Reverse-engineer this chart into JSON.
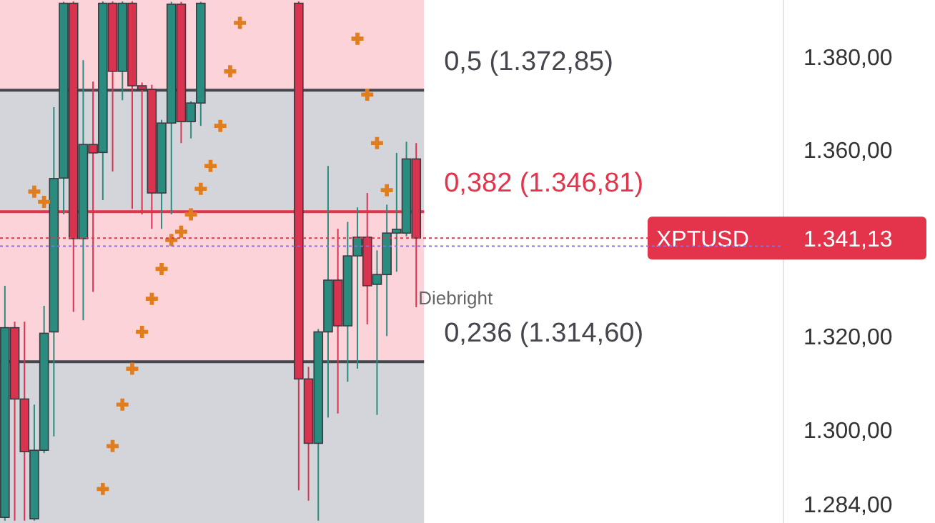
{
  "chart_data": {
    "type": "candlestick",
    "categories": [
      null,
      null,
      null,
      null,
      null,
      null,
      null,
      null,
      null,
      null,
      null,
      null,
      null,
      null,
      null,
      null,
      null,
      null,
      null,
      null,
      null,
      null,
      null,
      null,
      null,
      null,
      null,
      null,
      null,
      null,
      null,
      null,
      null,
      null,
      null,
      null,
      null,
      null,
      null,
      null,
      null,
      null,
      null,
      null,
      null,
      null,
      null,
      null,
      null,
      null,
      null,
      null,
      null,
      null,
      null,
      null,
      null,
      null,
      null,
      null,
      null,
      null,
      null,
      null,
      null,
      null,
      null,
      null,
      null,
      null,
      null,
      null,
      null,
      null,
      null,
      null,
      null,
      null,
      null,
      null
    ],
    "ohlc": [
      [
        1281.2,
        1330.9,
        1280.5,
        1321.9
      ],
      [
        1321.9,
        1323.2,
        1280.5,
        1306.6
      ],
      [
        1306.6,
        1323.2,
        1280.5,
        1295.3
      ],
      [
        1280.9,
        1305.4,
        1280.5,
        1295.6
      ],
      [
        1295.6,
        1326.6,
        1295.0,
        1320.7
      ],
      [
        1321.0,
        1369.2,
        1298.6,
        1353.9
      ],
      [
        1354.0,
        1391.8,
        1346.2,
        1391.5
      ],
      [
        1391.5,
        1391.9,
        1325.3,
        1341.0
      ],
      [
        1341.0,
        1379.3,
        1323.5,
        1361.2
      ],
      [
        1361.2,
        1374.7,
        1329.6,
        1359.4
      ],
      [
        1359.5,
        1391.9,
        1349.3,
        1391.5
      ],
      [
        1391.5,
        1391.9,
        1355.4,
        1376.9
      ],
      [
        1376.9,
        1391.9,
        1370.7,
        1391.5
      ],
      [
        1391.5,
        1391.9,
        1347.4,
        1373.8
      ],
      [
        1373.8,
        1374.5,
        1346.2,
        1373.0
      ],
      [
        1373.0,
        1374.0,
        1343.1,
        1350.8
      ],
      [
        1350.8,
        1366.5,
        1343.1,
        1365.8
      ],
      [
        1365.8,
        1391.8,
        1346.2,
        1391.3
      ],
      [
        1391.3,
        1391.8,
        1361.5,
        1366.1
      ],
      [
        1366.1,
        1370.5,
        1362.5,
        1370.1
      ],
      [
        1370.1,
        1391.8,
        1365.2,
        1391.5
      ],
      null,
      null,
      null,
      null,
      null,
      null,
      null,
      null,
      null,
      [
        1391.5,
        1391.9,
        1287.0,
        1310.9
      ],
      [
        1310.9,
        1313.5,
        1284.8,
        1297.1
      ],
      [
        1297.1,
        1321.6,
        1280.5,
        1321.0
      ],
      [
        1321.0,
        1356.6,
        1302.6,
        1332.1
      ],
      [
        1332.1,
        1343.1,
        1303.5,
        1322.3
      ],
      [
        1322.3,
        1344.6,
        1310.3,
        1337.3
      ],
      [
        1337.3,
        1347.7,
        1313.1,
        1341.3
      ],
      [
        1341.3,
        1350.8,
        1322.6,
        1330.9
      ],
      [
        1331.2,
        1338.5,
        1303.2,
        1333.3
      ],
      [
        1333.3,
        1348.3,
        1320.1,
        1342.2
      ],
      [
        1342.2,
        1359.4,
        1333.9,
        1343.0
      ],
      [
        1342.2,
        1361.8,
        1341.5,
        1358.1
      ],
      [
        1358.1,
        1361.5,
        1326.3,
        1341.13
      ],
      null,
      null,
      null,
      null,
      null,
      null,
      null,
      null,
      null,
      null,
      null,
      null,
      null,
      null,
      null,
      null,
      null,
      null,
      null,
      null,
      null,
      null,
      null,
      null,
      null,
      null,
      null,
      null,
      null,
      null,
      null,
      null,
      null,
      null,
      null,
      null,
      null
    ],
    "colors": [
      "#2a8c7e",
      "#d9334f",
      "#d9334f",
      "#2a8c7e",
      "#2a8c7e",
      "#2a8c7e",
      "#2a8c7e",
      "#d9334f",
      "#2a8c7e",
      "#d9334f",
      "#2a8c7e",
      "#d9334f",
      "#2a8c7e",
      "#d9334f",
      "#d9334f",
      "#d9334f",
      "#2a8c7e",
      "#2a8c7e",
      "#d9334f",
      "#2a8c7e",
      "#2a8c7e",
      null,
      null,
      null,
      null,
      null,
      null,
      null,
      null,
      null,
      "#d9334f",
      "#d9334f",
      "#2a8c7e",
      "#2a8c7e",
      "#d9334f",
      "#2a8c7e",
      "#2a8c7e",
      "#d9334f",
      "#2a8c7e",
      "#2a8c7e",
      "#2a8c7e",
      "#2a8c7e",
      "#d9334f",
      null,
      null,
      null,
      null,
      null,
      null,
      null,
      null,
      null,
      null,
      null,
      null,
      null,
      null,
      null,
      null,
      null,
      null,
      null,
      null,
      null,
      null,
      null,
      null,
      null,
      null,
      null,
      null,
      null,
      null,
      null,
      null,
      null,
      null,
      null,
      null,
      null
    ],
    "series": [
      {
        "type": "scatter",
        "color": "#e07d1f",
        "values": [
          null,
          null,
          null,
          1351.1,
          1348.9,
          null,
          null,
          null,
          null,
          null,
          1287.3,
          1296.5,
          1305.4,
          1313.1,
          1321.0,
          1328.1,
          1334.5,
          1340.7,
          1342.5,
          1346.2,
          1351.7,
          1356.6,
          1365.2,
          1376.9,
          1387.3,
          null,
          null,
          null,
          null,
          null,
          null,
          null,
          null,
          null,
          null,
          null,
          1383.9,
          1371.9,
          1361.5,
          1351.4,
          null,
          null,
          null,
          null,
          null,
          null,
          null,
          null,
          null,
          null,
          null,
          null,
          null,
          null,
          null,
          null,
          null,
          null,
          null,
          null,
          null,
          null,
          null,
          null,
          null,
          null,
          null,
          null,
          null,
          null,
          null,
          null,
          null,
          null,
          null,
          null,
          null,
          null,
          null,
          null
        ]
      }
    ],
    "marker": "cross",
    "ylim": [
      1280,
      1392.2
    ],
    "yticks": [
      {
        "value": 1284,
        "label": "1.284,00"
      },
      {
        "value": 1300,
        "label": "1.300,00"
      },
      {
        "value": 1320,
        "label": "1.320,00"
      },
      {
        "value": 1360,
        "label": "1.360,00"
      },
      {
        "value": 1380,
        "label": "1.380,00"
      }
    ],
    "tick_labels": "y",
    "bands": [
      {
        "axis": "y",
        "from": 1372.85,
        "to": 1392.2,
        "color": "#fcd3d8"
      },
      {
        "axis": "y",
        "from": 1346.81,
        "to": 1372.85,
        "color": "#d3d5da"
      },
      {
        "axis": "y",
        "from": 1314.6,
        "to": 1346.81,
        "color": "#fcd3d8"
      },
      {
        "axis": "y",
        "from": 1280,
        "to": 1314.6,
        "color": "#d3d5da"
      }
    ],
    "ref_lines": [
      {
        "axis": "y",
        "value": 1372.85,
        "label": "0,5 (1.372,85)",
        "color": "#44454d",
        "line_style": "solid"
      },
      {
        "axis": "y",
        "value": 1346.81,
        "label": "0,382 (1.346,81)",
        "color": "#e4344c",
        "line_style": "solid"
      },
      {
        "axis": "y",
        "value": 1314.6,
        "label": "0,236 (1.314,60)",
        "color": "#44454d",
        "line_style": "solid"
      },
      {
        "axis": "y",
        "value": 1341.13,
        "label": "XPTUSD",
        "color": "#e4344c",
        "line_style": "dotted"
      },
      {
        "axis": "y",
        "value": 1339.4,
        "label": null,
        "color": "#8a70d8",
        "line_style": "dotted"
      }
    ],
    "annotations": [
      "Diebright",
      "1.341,13"
    ]
  }
}
